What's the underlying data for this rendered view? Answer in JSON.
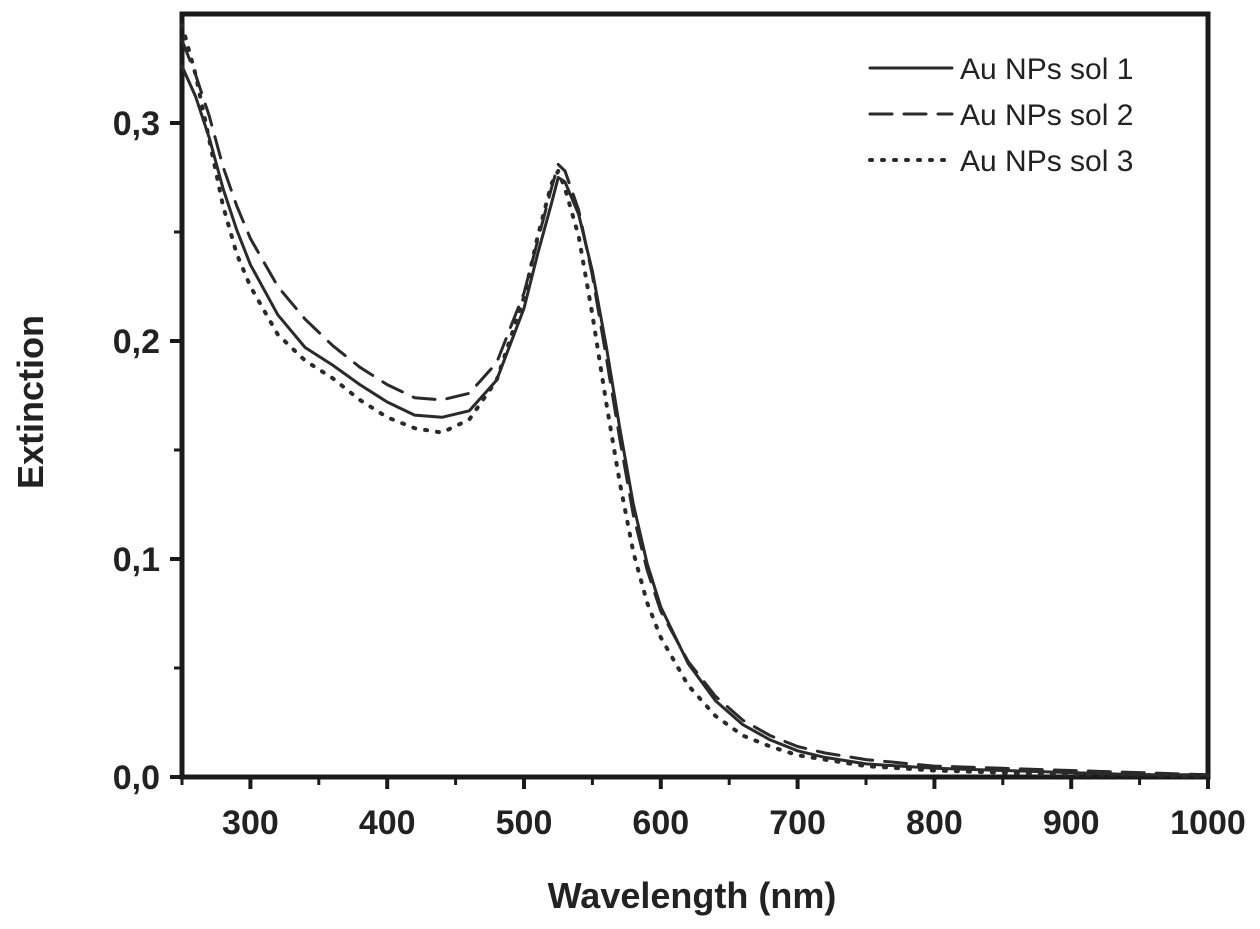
{
  "chart_data": {
    "type": "line",
    "title": "",
    "xlabel": "Wavelength (nm)",
    "ylabel": "Extinction",
    "xlim": [
      250,
      1000
    ],
    "ylim": [
      0,
      0.35
    ],
    "x_ticks": [
      300,
      400,
      500,
      600,
      700,
      800,
      900,
      1000
    ],
    "x_tick_labels": [
      "300",
      "400",
      "500",
      "600",
      "700",
      "800",
      "900",
      "1000"
    ],
    "x_minor_ticks": [
      250,
      350,
      450,
      550,
      650,
      750,
      850,
      950
    ],
    "y_ticks": [
      0,
      0.1,
      0.2,
      0.3
    ],
    "y_tick_labels": [
      "0,0",
      "0,1",
      "0,2",
      "0,3"
    ],
    "y_minor_ticks": [
      0.05,
      0.15,
      0.25
    ],
    "grid": false,
    "legend_position": "top-right",
    "x": [
      250,
      260,
      270,
      280,
      290,
      300,
      320,
      340,
      360,
      380,
      400,
      420,
      440,
      460,
      480,
      500,
      510,
      520,
      525,
      530,
      540,
      550,
      560,
      570,
      580,
      590,
      600,
      620,
      640,
      660,
      680,
      700,
      720,
      750,
      800,
      850,
      900,
      950,
      1000
    ],
    "series": [
      {
        "name": "Au NPs sol 1",
        "style": "solid",
        "values": [
          0.326,
          0.312,
          0.293,
          0.27,
          0.251,
          0.235,
          0.212,
          0.197,
          0.189,
          0.18,
          0.172,
          0.166,
          0.165,
          0.168,
          0.182,
          0.215,
          0.24,
          0.263,
          0.275,
          0.273,
          0.258,
          0.232,
          0.198,
          0.16,
          0.125,
          0.098,
          0.078,
          0.052,
          0.035,
          0.024,
          0.017,
          0.012,
          0.009,
          0.006,
          0.004,
          0.003,
          0.002,
          0.001,
          0.001
        ]
      },
      {
        "name": "Au NPs sol 2",
        "style": "dashed",
        "values": [
          0.338,
          0.322,
          0.303,
          0.28,
          0.262,
          0.247,
          0.225,
          0.21,
          0.198,
          0.188,
          0.18,
          0.174,
          0.173,
          0.176,
          0.19,
          0.222,
          0.246,
          0.27,
          0.281,
          0.278,
          0.26,
          0.23,
          0.193,
          0.155,
          0.12,
          0.095,
          0.076,
          0.053,
          0.037,
          0.026,
          0.019,
          0.014,
          0.011,
          0.008,
          0.005,
          0.004,
          0.003,
          0.002,
          0.001
        ]
      },
      {
        "name": "Au NPs sol 3",
        "style": "dotted",
        "values": [
          0.345,
          0.322,
          0.292,
          0.262,
          0.24,
          0.225,
          0.203,
          0.191,
          0.183,
          0.173,
          0.165,
          0.16,
          0.158,
          0.164,
          0.182,
          0.22,
          0.248,
          0.272,
          0.278,
          0.27,
          0.248,
          0.212,
          0.172,
          0.135,
          0.103,
          0.08,
          0.064,
          0.042,
          0.028,
          0.019,
          0.014,
          0.01,
          0.008,
          0.005,
          0.003,
          0.002,
          0.001,
          0.001,
          0.0
        ]
      }
    ]
  }
}
